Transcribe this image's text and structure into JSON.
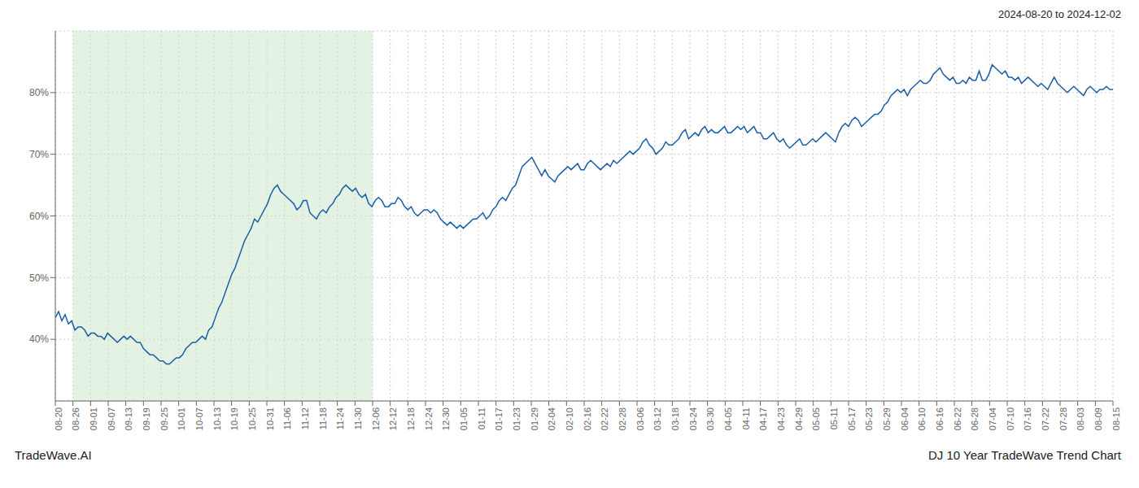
{
  "chart_data": {
    "type": "line",
    "title": "2024-08-20 to 2024-12-02",
    "annotations": [
      "TradeWave.AI",
      "DJ 10 Year TradeWave Trend Chart"
    ],
    "color": "#1a5fa8",
    "grid": true,
    "xlim": [
      0,
      324
    ],
    "xticks": [
      {
        "value": 0,
        "label": "08-20"
      },
      {
        "value": 5.4,
        "label": "08-26"
      },
      {
        "value": 10.8,
        "label": "09-01"
      },
      {
        "value": 16.2,
        "label": "09-07"
      },
      {
        "value": 21.6,
        "label": "09-13"
      },
      {
        "value": 27,
        "label": "09-19"
      },
      {
        "value": 32.4,
        "label": "09-25"
      },
      {
        "value": 37.8,
        "label": "10-01"
      },
      {
        "value": 43.2,
        "label": "10-07"
      },
      {
        "value": 48.6,
        "label": "10-13"
      },
      {
        "value": 54,
        "label": "10-19"
      },
      {
        "value": 59.4,
        "label": "10-25"
      },
      {
        "value": 64.8,
        "label": "10-31"
      },
      {
        "value": 70.2,
        "label": "11-06"
      },
      {
        "value": 75.6,
        "label": "11-12"
      },
      {
        "value": 81,
        "label": "11-18"
      },
      {
        "value": 86.4,
        "label": "11-24"
      },
      {
        "value": 91.8,
        "label": "11-30"
      },
      {
        "value": 97.2,
        "label": "12-06"
      },
      {
        "value": 102.6,
        "label": "12-12"
      },
      {
        "value": 108,
        "label": "12-18"
      },
      {
        "value": 113.4,
        "label": "12-24"
      },
      {
        "value": 118.8,
        "label": "12-30"
      },
      {
        "value": 124.2,
        "label": "01-05"
      },
      {
        "value": 129.6,
        "label": "01-11"
      },
      {
        "value": 135,
        "label": "01-17"
      },
      {
        "value": 140.4,
        "label": "01-23"
      },
      {
        "value": 145.8,
        "label": "01-29"
      },
      {
        "value": 151.2,
        "label": "02-04"
      },
      {
        "value": 156.6,
        "label": "02-10"
      },
      {
        "value": 162,
        "label": "02-16"
      },
      {
        "value": 167.4,
        "label": "02-22"
      },
      {
        "value": 172.8,
        "label": "02-28"
      },
      {
        "value": 178.2,
        "label": "03-06"
      },
      {
        "value": 183.6,
        "label": "03-12"
      },
      {
        "value": 189,
        "label": "03-18"
      },
      {
        "value": 194.4,
        "label": "03-24"
      },
      {
        "value": 199.8,
        "label": "03-30"
      },
      {
        "value": 205.2,
        "label": "04-05"
      },
      {
        "value": 210.6,
        "label": "04-11"
      },
      {
        "value": 216,
        "label": "04-17"
      },
      {
        "value": 221.4,
        "label": "04-23"
      },
      {
        "value": 226.8,
        "label": "04-29"
      },
      {
        "value": 232.2,
        "label": "05-05"
      },
      {
        "value": 237.6,
        "label": "05-11"
      },
      {
        "value": 243,
        "label": "05-17"
      },
      {
        "value": 248.4,
        "label": "05-23"
      },
      {
        "value": 253.8,
        "label": "05-29"
      },
      {
        "value": 259.2,
        "label": "06-04"
      },
      {
        "value": 264.6,
        "label": "06-10"
      },
      {
        "value": 270,
        "label": "06-16"
      },
      {
        "value": 275.4,
        "label": "06-22"
      },
      {
        "value": 280.8,
        "label": "06-28"
      },
      {
        "value": 286.2,
        "label": "07-04"
      },
      {
        "value": 291.6,
        "label": "07-10"
      },
      {
        "value": 297,
        "label": "07-16"
      },
      {
        "value": 302.4,
        "label": "07-22"
      },
      {
        "value": 307.8,
        "label": "07-28"
      },
      {
        "value": 313.2,
        "label": "08-03"
      },
      {
        "value": 318.6,
        "label": "08-09"
      },
      {
        "value": 324,
        "label": "08-15"
      }
    ],
    "ylim": [
      30,
      90
    ],
    "yticks": [
      {
        "value": 40,
        "label": "40%"
      },
      {
        "value": 50,
        "label": "50%"
      },
      {
        "value": 60,
        "label": "60%"
      },
      {
        "value": 70,
        "label": "70%"
      },
      {
        "value": 80,
        "label": "80%"
      }
    ],
    "shade": {
      "x": [
        5.4,
        97.2
      ],
      "color": "#c8e6c8"
    },
    "values": [
      43.5,
      44.5,
      43.0,
      44.0,
      42.5,
      43.0,
      41.5,
      42.0,
      42.0,
      41.5,
      40.5,
      41.0,
      41.0,
      40.5,
      40.5,
      40.0,
      41.0,
      40.5,
      40.0,
      39.5,
      40.0,
      40.5,
      40.0,
      40.5,
      40.0,
      39.5,
      39.5,
      38.5,
      38.0,
      37.5,
      37.5,
      37.0,
      36.5,
      36.5,
      36.0,
      36.0,
      36.5,
      37.0,
      37.0,
      37.5,
      38.5,
      39.0,
      39.5,
      39.5,
      40.0,
      40.5,
      40.0,
      41.5,
      42.0,
      43.5,
      45.0,
      46.0,
      47.5,
      49.0,
      50.5,
      51.5,
      53.0,
      54.5,
      56.0,
      57.0,
      58.0,
      59.5,
      59.0,
      60.0,
      61.0,
      62.0,
      63.5,
      64.5,
      65.0,
      64.0,
      63.5,
      63.0,
      62.5,
      62.0,
      61.0,
      61.5,
      62.5,
      62.5,
      60.5,
      60.0,
      59.5,
      60.5,
      61.0,
      60.5,
      61.5,
      62.0,
      63.0,
      63.5,
      64.5,
      65.0,
      64.5,
      64.0,
      64.5,
      63.5,
      63.0,
      63.5,
      62.0,
      61.5,
      62.5,
      63.0,
      62.5,
      61.5,
      61.5,
      62.0,
      62.0,
      63.0,
      62.5,
      61.5,
      61.0,
      61.5,
      60.5,
      60.0,
      60.5,
      61.0,
      61.0,
      60.5,
      61.0,
      60.5,
      59.5,
      59.0,
      58.5,
      59.0,
      58.5,
      58.0,
      58.5,
      58.0,
      58.5,
      59.0,
      59.5,
      59.5,
      60.0,
      60.5,
      59.5,
      60.0,
      61.0,
      61.5,
      62.5,
      63.0,
      62.5,
      63.5,
      64.5,
      65.0,
      66.5,
      68.0,
      68.5,
      69.0,
      69.5,
      68.5,
      67.5,
      66.5,
      67.5,
      66.5,
      66.0,
      65.5,
      66.5,
      67.0,
      67.5,
      68.0,
      67.5,
      68.0,
      68.5,
      67.5,
      67.5,
      68.5,
      69.0,
      68.5,
      68.0,
      67.5,
      68.0,
      68.5,
      68.0,
      69.0,
      68.5,
      69.0,
      69.5,
      70.0,
      70.5,
      70.0,
      70.5,
      71.0,
      72.0,
      72.5,
      71.5,
      71.0,
      70.0,
      70.5,
      71.0,
      72.0,
      71.5,
      71.5,
      72.0,
      72.5,
      73.5,
      74.0,
      72.5,
      73.0,
      73.5,
      73.0,
      74.0,
      74.5,
      73.5,
      74.0,
      73.5,
      73.5,
      74.0,
      74.5,
      73.5,
      73.5,
      74.0,
      74.5,
      74.0,
      74.5,
      73.5,
      74.0,
      74.5,
      73.5,
      73.5,
      72.5,
      72.5,
      73.0,
      73.5,
      72.5,
      72.0,
      72.5,
      71.5,
      71.0,
      71.5,
      72.0,
      72.5,
      71.5,
      71.5,
      72.0,
      72.5,
      72.0,
      72.5,
      73.0,
      73.5,
      73.0,
      72.5,
      72.0,
      73.5,
      74.5,
      75.0,
      74.5,
      75.5,
      76.0,
      75.5,
      74.5,
      75.0,
      75.5,
      76.0,
      76.5,
      76.5,
      77.0,
      78.0,
      78.5,
      79.5,
      80.0,
      80.5,
      80.0,
      80.5,
      79.5,
      80.5,
      81.0,
      81.5,
      82.0,
      81.5,
      81.5,
      82.0,
      83.0,
      83.5,
      84.0,
      83.0,
      82.5,
      82.0,
      82.5,
      81.5,
      81.5,
      82.0,
      81.5,
      82.5,
      82.0,
      82.0,
      83.5,
      82.0,
      82.0,
      83.0,
      84.5,
      84.0,
      83.5,
      83.0,
      83.5,
      82.5,
      82.5,
      82.0,
      82.5,
      81.5,
      82.0,
      82.5,
      82.0,
      81.5,
      81.0,
      81.5,
      81.0,
      80.5,
      81.5,
      82.5,
      81.5,
      81.0,
      80.5,
      80.0,
      80.5,
      81.0,
      80.5,
      80.0,
      79.5,
      80.5,
      81.0,
      80.5,
      80.0,
      80.5,
      80.5,
      81.0,
      80.5,
      80.5
    ]
  }
}
